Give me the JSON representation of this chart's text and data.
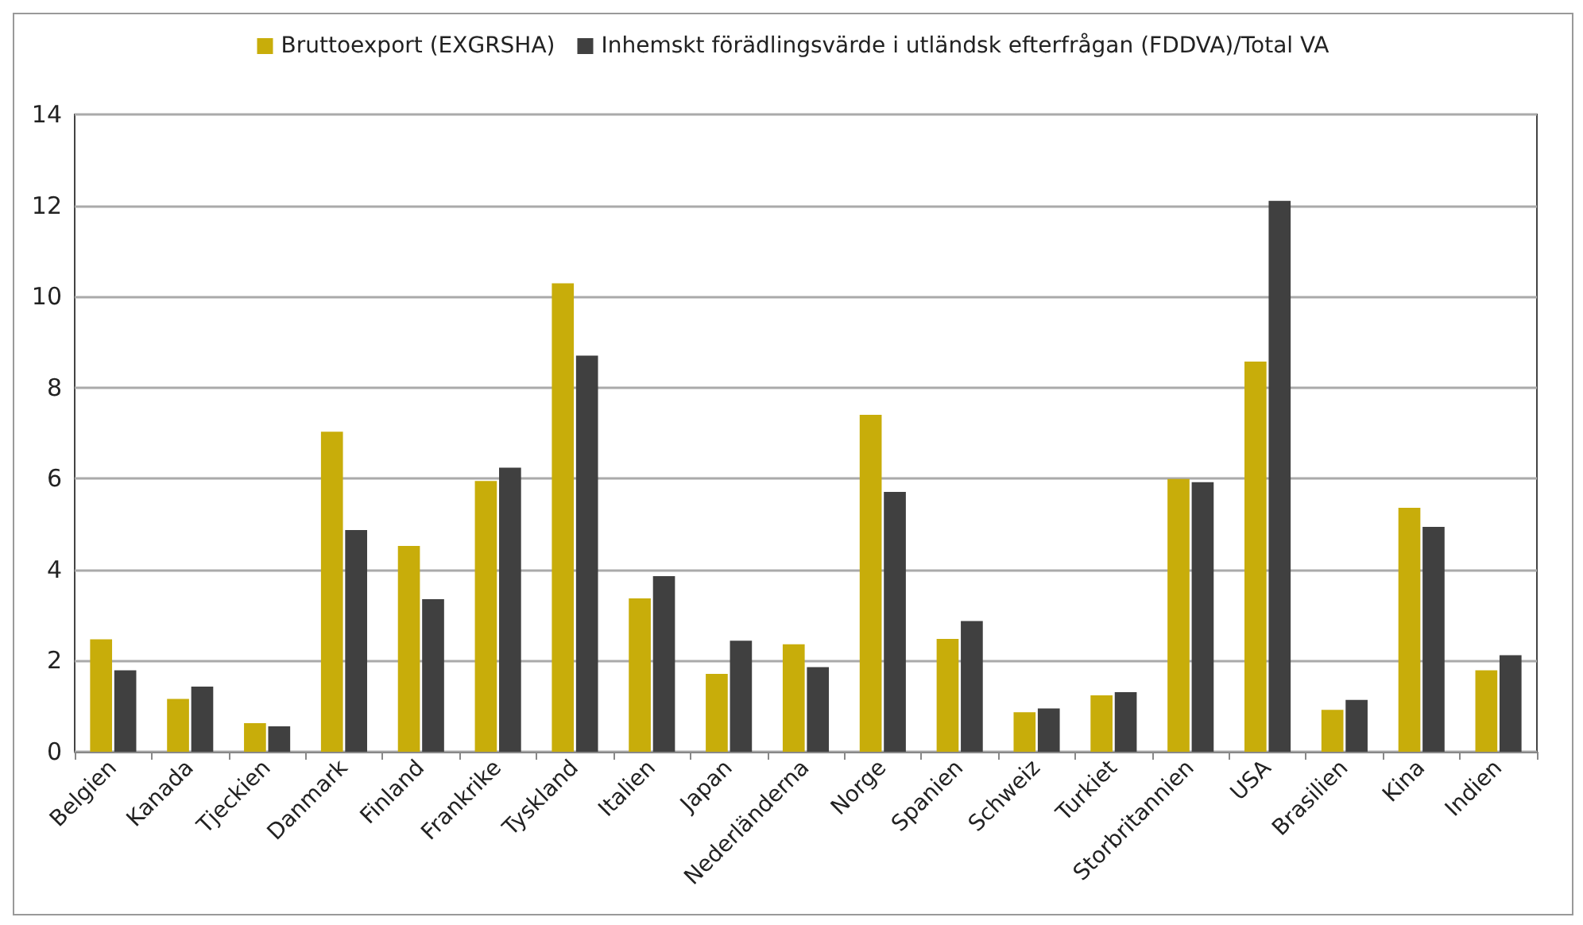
{
  "chart_data": {
    "type": "bar",
    "categories": [
      "Belgien",
      "Kanada",
      "Tjeckien",
      "Danmark",
      "Finland",
      "Frankrike",
      "Tyskland",
      "Italien",
      "Japan",
      "Nederländerna",
      "Norge",
      "Spanien",
      "Schweiz",
      "Turkiet",
      "Storbritannien",
      "USA",
      "Brasilien",
      "Kina",
      "Indien"
    ],
    "series": [
      {
        "name": "Bruttoexport (EXGRSHA)",
        "color": "#c8ad0a",
        "values": [
          2.47,
          1.16,
          0.63,
          7.03,
          4.52,
          5.95,
          10.29,
          3.37,
          1.71,
          2.36,
          7.4,
          2.48,
          0.87,
          1.24,
          5.99,
          8.57,
          0.92,
          5.36,
          1.79
        ]
      },
      {
        "name": "Inhemskt förädlingsvärde i utländsk efterfrågan (FDDVA)/Total VA",
        "color": "#404040",
        "values": [
          1.79,
          1.43,
          0.56,
          4.87,
          3.35,
          6.24,
          8.7,
          3.86,
          2.44,
          1.86,
          5.71,
          2.87,
          0.95,
          1.31,
          5.92,
          12.1,
          1.14,
          4.94,
          2.12
        ]
      }
    ],
    "ylim": [
      0,
      14
    ],
    "yticks": [
      0,
      2,
      4,
      6,
      8,
      10,
      12,
      14
    ],
    "grid": "y",
    "legend": "top"
  }
}
